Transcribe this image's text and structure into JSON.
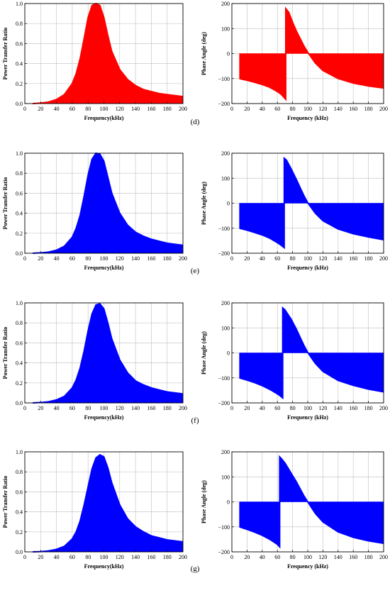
{
  "chart_data": [
    {
      "id": "d-power",
      "type": "area",
      "color": "#ff0000",
      "xlabel": "Frequency(kHz)",
      "ylabel": "Power Transfer Ratio",
      "xlim": [
        0,
        200
      ],
      "ylim": [
        0,
        1.0
      ],
      "xticks": [
        "0",
        "20",
        "40",
        "60",
        "80",
        "100",
        "120",
        "140",
        "160",
        "180",
        "200"
      ],
      "yticks": [
        "0.0",
        "0.2",
        "0.4",
        "0.6",
        "0.8",
        "1.0"
      ],
      "grid": true,
      "series": [
        {
          "x": [
            10,
            20,
            30,
            40,
            50,
            60,
            65,
            70,
            75,
            80,
            85,
            90,
            95,
            100,
            105,
            110,
            120,
            130,
            140,
            150,
            160,
            170,
            180,
            190,
            200
          ],
          "values": [
            0.0,
            0.005,
            0.015,
            0.04,
            0.09,
            0.2,
            0.3,
            0.45,
            0.65,
            0.86,
            0.98,
            1.0,
            0.98,
            0.86,
            0.68,
            0.52,
            0.34,
            0.24,
            0.18,
            0.14,
            0.12,
            0.1,
            0.09,
            0.08,
            0.07
          ]
        }
      ]
    },
    {
      "id": "d-phase",
      "type": "area",
      "color": "#ff0000",
      "xlabel": "Frequency (kHz)",
      "ylabel": "Phase Angle (deg)",
      "xlim": [
        0,
        200
      ],
      "ylim": [
        -200,
        200
      ],
      "xticks": [
        "0",
        "20",
        "40",
        "60",
        "80",
        "100",
        "120",
        "140",
        "160",
        "180",
        "200"
      ],
      "yticks": [
        "200",
        "100",
        "0",
        "−100",
        "−200"
      ],
      "grid": true,
      "series": [
        {
          "x": [
            10,
            20,
            30,
            40,
            50,
            60,
            65,
            71,
            71,
            75,
            80,
            85,
            90,
            95,
            100,
            110,
            120,
            140,
            160,
            180,
            200
          ],
          "values": [
            -100,
            -107,
            -115,
            -124,
            -135,
            -152,
            -163,
            -183,
            180,
            165,
            125,
            90,
            60,
            30,
            5,
            -38,
            -68,
            -100,
            -118,
            -130,
            -138
          ]
        }
      ]
    },
    {
      "id": "e-power",
      "type": "area",
      "color": "#0000ff",
      "xlabel": "Frequency(kHz)",
      "ylabel": "Power Transfer Ratio",
      "xlim": [
        0,
        200
      ],
      "ylim": [
        0,
        1.0
      ],
      "xticks": [
        "0",
        "20",
        "40",
        "60",
        "80",
        "100",
        "120",
        "140",
        "160",
        "180",
        "200"
      ],
      "yticks": [
        "0.0",
        "0.2",
        "0.4",
        "0.6",
        "0.8",
        "1.0"
      ],
      "grid": true,
      "series": [
        {
          "x": [
            10,
            20,
            30,
            40,
            50,
            60,
            65,
            70,
            75,
            80,
            85,
            90,
            95,
            100,
            105,
            110,
            120,
            130,
            140,
            150,
            160,
            170,
            180,
            190,
            200
          ],
          "values": [
            0.0,
            0.004,
            0.012,
            0.03,
            0.07,
            0.16,
            0.25,
            0.38,
            0.57,
            0.78,
            0.94,
            1.0,
            0.99,
            0.92,
            0.76,
            0.6,
            0.4,
            0.28,
            0.21,
            0.17,
            0.14,
            0.12,
            0.1,
            0.09,
            0.08
          ]
        }
      ]
    },
    {
      "id": "e-phase",
      "type": "area",
      "color": "#0000ff",
      "xlabel": "Frequency (kHz)",
      "ylabel": "Phase Angle (deg)",
      "xlim": [
        0,
        200
      ],
      "ylim": [
        -200,
        200
      ],
      "xticks": [
        "0",
        "20",
        "40",
        "60",
        "80",
        "100",
        "120",
        "140",
        "160",
        "180",
        "200"
      ],
      "yticks": [
        "200",
        "100",
        "0",
        "−100",
        "−200"
      ],
      "grid": true,
      "series": [
        {
          "x": [
            10,
            20,
            30,
            40,
            50,
            60,
            64,
            69,
            69,
            72,
            78,
            85,
            90,
            95,
            100,
            110,
            120,
            140,
            160,
            180,
            200
          ],
          "values": [
            -100,
            -108,
            -117,
            -127,
            -140,
            -158,
            -166,
            -178,
            180,
            172,
            138,
            95,
            62,
            30,
            2,
            -40,
            -70,
            -103,
            -122,
            -135,
            -146
          ]
        }
      ]
    },
    {
      "id": "f-power",
      "type": "area",
      "color": "#0000ff",
      "xlabel": "Frequency(kHz)",
      "ylabel": "Power Transfer Ratio",
      "xlim": [
        0,
        200
      ],
      "ylim": [
        0,
        1.0
      ],
      "xticks": [
        "0",
        "20",
        "40",
        "60",
        "80",
        "100",
        "120",
        "140",
        "160",
        "180",
        "200"
      ],
      "yticks": [
        "0.0",
        "0.2",
        "0.4",
        "0.6",
        "0.8",
        "1.0"
      ],
      "grid": true,
      "series": [
        {
          "x": [
            10,
            20,
            30,
            40,
            50,
            60,
            65,
            70,
            75,
            80,
            85,
            90,
            95,
            100,
            105,
            110,
            120,
            130,
            140,
            150,
            160,
            170,
            180,
            190,
            200
          ],
          "values": [
            0.0,
            0.004,
            0.012,
            0.03,
            0.065,
            0.15,
            0.23,
            0.35,
            0.52,
            0.72,
            0.89,
            0.98,
            0.99,
            0.94,
            0.8,
            0.64,
            0.43,
            0.3,
            0.22,
            0.18,
            0.15,
            0.13,
            0.11,
            0.1,
            0.09
          ]
        }
      ]
    },
    {
      "id": "f-phase",
      "type": "area",
      "color": "#0000ff",
      "xlabel": "Frequency (kHz)",
      "ylabel": "Phase Angle (deg)",
      "xlim": [
        0,
        200
      ],
      "ylim": [
        -200,
        200
      ],
      "xticks": [
        "0",
        "20",
        "40",
        "60",
        "80",
        "100",
        "120",
        "140",
        "160",
        "180",
        "200"
      ],
      "yticks": [
        "200",
        "100",
        "0",
        "−100",
        "−200"
      ],
      "grid": true,
      "series": [
        {
          "x": [
            10,
            20,
            30,
            40,
            50,
            60,
            63,
            67,
            67,
            70,
            78,
            85,
            90,
            95,
            100,
            110,
            120,
            140,
            160,
            180,
            200
          ],
          "values": [
            -100,
            -109,
            -119,
            -131,
            -146,
            -164,
            -170,
            -180,
            180,
            172,
            135,
            95,
            62,
            30,
            2,
            -42,
            -74,
            -110,
            -130,
            -145,
            -156
          ]
        }
      ]
    },
    {
      "id": "g-power",
      "type": "area",
      "color": "#0000ff",
      "xlabel": "Frequency(kHz)",
      "ylabel": "Power Transfer Ratio",
      "xlim": [
        0,
        200
      ],
      "ylim": [
        0,
        1.0
      ],
      "xticks": [
        "0",
        "20",
        "40",
        "60",
        "80",
        "100",
        "120",
        "140",
        "160",
        "180",
        "200"
      ],
      "yticks": [
        "0.0",
        "0.2",
        "0.4",
        "0.6",
        "0.8",
        "1.0"
      ],
      "grid": true,
      "series": [
        {
          "x": [
            10,
            20,
            30,
            40,
            50,
            60,
            65,
            70,
            75,
            80,
            85,
            90,
            95,
            100,
            105,
            110,
            120,
            130,
            140,
            150,
            160,
            170,
            180,
            190,
            200
          ],
          "values": [
            0.0,
            0.003,
            0.01,
            0.025,
            0.055,
            0.13,
            0.2,
            0.31,
            0.47,
            0.65,
            0.83,
            0.94,
            0.97,
            0.95,
            0.84,
            0.69,
            0.47,
            0.33,
            0.25,
            0.2,
            0.16,
            0.14,
            0.12,
            0.11,
            0.1
          ]
        }
      ]
    },
    {
      "id": "g-phase",
      "type": "area",
      "color": "#0000ff",
      "xlabel": "Frequency (kHz)",
      "ylabel": "Phase Angle (deg)",
      "xlim": [
        0,
        200
      ],
      "ylim": [
        -200,
        200
      ],
      "xticks": [
        "0",
        "20",
        "40",
        "60",
        "80",
        "100",
        "120",
        "140",
        "160",
        "180",
        "200"
      ],
      "yticks": [
        "200",
        "100",
        "0",
        "−100",
        "−200"
      ],
      "grid": true,
      "series": [
        {
          "x": [
            10,
            20,
            30,
            40,
            50,
            60,
            63,
            63,
            66,
            70,
            78,
            85,
            90,
            95,
            100,
            110,
            120,
            140,
            160,
            180,
            200
          ],
          "values": [
            -100,
            -110,
            -121,
            -134,
            -150,
            -170,
            -180,
            180,
            170,
            155,
            115,
            80,
            52,
            24,
            0,
            -46,
            -80,
            -120,
            -142,
            -156,
            -166
          ]
        }
      ]
    }
  ],
  "panel_labels": [
    "(d)",
    "(e)",
    "(f)",
    "(g)"
  ]
}
